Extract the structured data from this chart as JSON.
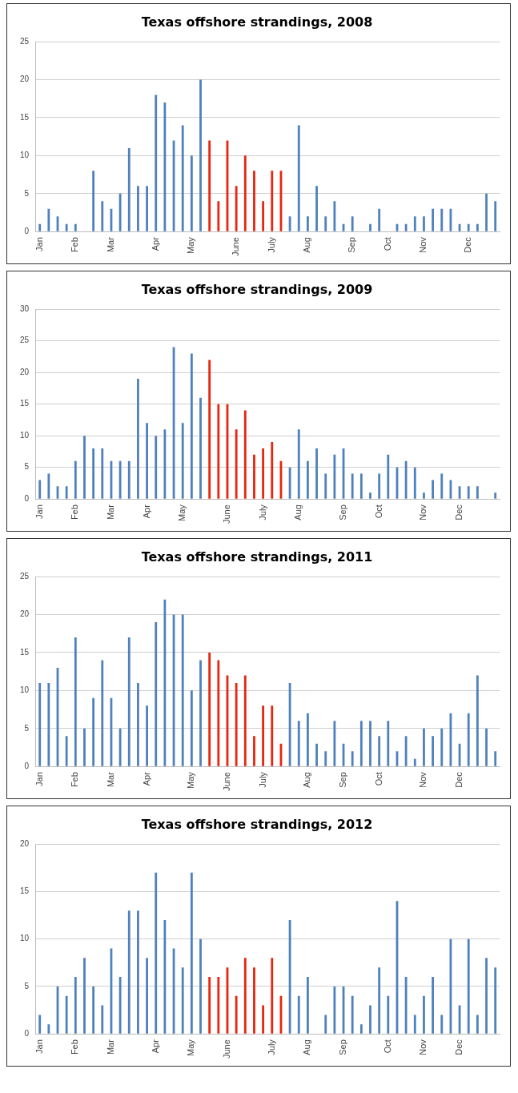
{
  "chart_data": [
    {
      "type": "bar",
      "title": "Texas offshore strandings, 2008",
      "categories": [
        "Jan",
        null,
        null,
        null,
        "Feb",
        null,
        null,
        null,
        "Mar",
        null,
        null,
        null,
        null,
        "Apr",
        null,
        null,
        null,
        "May",
        null,
        null,
        null,
        null,
        "June",
        null,
        null,
        null,
        "July",
        null,
        null,
        null,
        "Aug",
        null,
        null,
        null,
        null,
        "Sep",
        null,
        null,
        null,
        "Oct",
        null,
        null,
        null,
        "Nov",
        null,
        null,
        null,
        null,
        "Dec",
        null,
        null,
        null
      ],
      "values": [
        1,
        3,
        2,
        1,
        1,
        0,
        8,
        4,
        3,
        5,
        11,
        6,
        6,
        18,
        17,
        12,
        14,
        10,
        20,
        12,
        4,
        12,
        6,
        10,
        8,
        4,
        8,
        8,
        2,
        14,
        2,
        6,
        2,
        4,
        1,
        2,
        0,
        1,
        3,
        0,
        1,
        1,
        2,
        2,
        3,
        3,
        3,
        1,
        1,
        1,
        5,
        4
      ],
      "colors": [
        "#4f81bd",
        "#4f81bd",
        "#4f81bd",
        "#4f81bd",
        "#4f81bd",
        "#4f81bd",
        "#4f81bd",
        "#4f81bd",
        "#4f81bd",
        "#4f81bd",
        "#4f81bd",
        "#4f81bd",
        "#4f81bd",
        "#4f81bd",
        "#4f81bd",
        "#4f81bd",
        "#4f81bd",
        "#4f81bd",
        "#4f81bd",
        "#e8250f",
        "#e8250f",
        "#e8250f",
        "#e8250f",
        "#e8250f",
        "#e8250f",
        "#e8250f",
        "#e8250f",
        "#e8250f",
        "#4f81bd",
        "#4f81bd",
        "#4f81bd",
        "#4f81bd",
        "#4f81bd",
        "#4f81bd",
        "#4f81bd",
        "#4f81bd",
        "#4f81bd",
        "#4f81bd",
        "#4f81bd",
        "#4f81bd",
        "#4f81bd",
        "#4f81bd",
        "#4f81bd",
        "#4f81bd",
        "#4f81bd",
        "#4f81bd",
        "#4f81bd",
        "#4f81bd",
        "#4f81bd",
        "#4f81bd",
        "#4f81bd",
        "#4f81bd"
      ],
      "ylim": [
        0,
        25
      ],
      "yticks": [
        0,
        5,
        10,
        15,
        20,
        25
      ],
      "grid": "y"
    },
    {
      "type": "bar",
      "title": "Texas offshore strandings, 2009",
      "categories": [
        "Jan",
        null,
        null,
        null,
        "Feb",
        null,
        null,
        null,
        "Mar",
        null,
        null,
        null,
        "Apr",
        null,
        null,
        null,
        "May",
        null,
        null,
        null,
        null,
        "June",
        null,
        null,
        null,
        "July",
        null,
        null,
        null,
        "Aug",
        null,
        null,
        null,
        null,
        "Sep",
        null,
        null,
        null,
        "Oct",
        null,
        null,
        null,
        null,
        "Nov",
        null,
        null,
        null,
        "Dec",
        null,
        null,
        null,
        null
      ],
      "values": [
        3,
        4,
        2,
        2,
        6,
        10,
        8,
        8,
        6,
        6,
        6,
        19,
        12,
        10,
        11,
        24,
        12,
        23,
        16,
        22,
        15,
        15,
        11,
        14,
        7,
        8,
        9,
        6,
        5,
        11,
        6,
        8,
        4,
        7,
        8,
        4,
        4,
        1,
        4,
        7,
        5,
        6,
        5,
        1,
        3,
        4,
        3,
        2,
        2,
        2,
        0,
        1
      ],
      "colors": [
        "#4f81bd",
        "#4f81bd",
        "#4f81bd",
        "#4f81bd",
        "#4f81bd",
        "#4f81bd",
        "#4f81bd",
        "#4f81bd",
        "#4f81bd",
        "#4f81bd",
        "#4f81bd",
        "#4f81bd",
        "#4f81bd",
        "#4f81bd",
        "#4f81bd",
        "#4f81bd",
        "#4f81bd",
        "#4f81bd",
        "#4f81bd",
        "#e8250f",
        "#e8250f",
        "#e8250f",
        "#e8250f",
        "#e8250f",
        "#e8250f",
        "#e8250f",
        "#e8250f",
        "#e8250f",
        "#4f81bd",
        "#4f81bd",
        "#4f81bd",
        "#4f81bd",
        "#4f81bd",
        "#4f81bd",
        "#4f81bd",
        "#4f81bd",
        "#4f81bd",
        "#4f81bd",
        "#4f81bd",
        "#4f81bd",
        "#4f81bd",
        "#4f81bd",
        "#4f81bd",
        "#4f81bd",
        "#4f81bd",
        "#4f81bd",
        "#4f81bd",
        "#4f81bd",
        "#4f81bd",
        "#4f81bd",
        "#4f81bd",
        "#4f81bd"
      ],
      "ylim": [
        0,
        30
      ],
      "yticks": [
        0,
        5,
        10,
        15,
        20,
        25,
        30
      ],
      "grid": "y"
    },
    {
      "type": "bar",
      "title": "Texas offshore strandings, 2011",
      "categories": [
        "Jan",
        null,
        null,
        null,
        "Feb",
        null,
        null,
        null,
        "Mar",
        null,
        null,
        null,
        "Apr",
        null,
        null,
        null,
        null,
        "May",
        null,
        null,
        null,
        "June",
        null,
        null,
        null,
        "July",
        null,
        null,
        null,
        null,
        "Aug",
        null,
        null,
        null,
        "Sep",
        null,
        null,
        null,
        "Oct",
        null,
        null,
        null,
        null,
        "Nov",
        null,
        null,
        null,
        "Dec",
        null,
        null,
        null,
        null
      ],
      "values": [
        11,
        11,
        13,
        4,
        17,
        5,
        9,
        14,
        9,
        5,
        17,
        11,
        8,
        19,
        22,
        20,
        20,
        10,
        14,
        15,
        14,
        12,
        11,
        12,
        4,
        8,
        8,
        3,
        11,
        6,
        7,
        3,
        2,
        6,
        3,
        2,
        6,
        6,
        4,
        6,
        2,
        4,
        1,
        5,
        4,
        5,
        7,
        3,
        7,
        12,
        5,
        2
      ],
      "colors": [
        "#4f81bd",
        "#4f81bd",
        "#4f81bd",
        "#4f81bd",
        "#4f81bd",
        "#4f81bd",
        "#4f81bd",
        "#4f81bd",
        "#4f81bd",
        "#4f81bd",
        "#4f81bd",
        "#4f81bd",
        "#4f81bd",
        "#4f81bd",
        "#4f81bd",
        "#4f81bd",
        "#4f81bd",
        "#4f81bd",
        "#4f81bd",
        "#e8250f",
        "#e8250f",
        "#e8250f",
        "#e8250f",
        "#e8250f",
        "#e8250f",
        "#e8250f",
        "#e8250f",
        "#e8250f",
        "#4f81bd",
        "#4f81bd",
        "#4f81bd",
        "#4f81bd",
        "#4f81bd",
        "#4f81bd",
        "#4f81bd",
        "#4f81bd",
        "#4f81bd",
        "#4f81bd",
        "#4f81bd",
        "#4f81bd",
        "#4f81bd",
        "#4f81bd",
        "#4f81bd",
        "#4f81bd",
        "#4f81bd",
        "#4f81bd",
        "#4f81bd",
        "#4f81bd",
        "#4f81bd",
        "#4f81bd",
        "#4f81bd",
        "#4f81bd"
      ],
      "ylim": [
        0,
        25
      ],
      "yticks": [
        0,
        5,
        10,
        15,
        20,
        25
      ],
      "grid": "y"
    },
    {
      "type": "bar",
      "title": "Texas offshore strandings, 2012",
      "categories": [
        "Jan",
        null,
        null,
        null,
        "Feb",
        null,
        null,
        null,
        "Mar",
        null,
        null,
        null,
        null,
        "Apr",
        null,
        null,
        null,
        "May",
        null,
        null,
        null,
        "June",
        null,
        null,
        null,
        null,
        "July",
        null,
        null,
        null,
        "Aug",
        null,
        null,
        null,
        "Sep",
        null,
        null,
        null,
        null,
        "Oct",
        null,
        null,
        null,
        "Nov",
        null,
        null,
        null,
        "Dec",
        null,
        null,
        null,
        null
      ],
      "values": [
        2,
        1,
        5,
        4,
        6,
        8,
        5,
        3,
        9,
        6,
        13,
        13,
        8,
        17,
        12,
        9,
        7,
        17,
        10,
        6,
        6,
        7,
        4,
        8,
        7,
        3,
        8,
        4,
        12,
        4,
        6,
        0,
        2,
        5,
        5,
        4,
        1,
        3,
        7,
        4,
        14,
        6,
        2,
        4,
        6,
        2,
        10,
        3,
        10,
        2,
        8,
        7
      ],
      "colors": [
        "#4f81bd",
        "#4f81bd",
        "#4f81bd",
        "#4f81bd",
        "#4f81bd",
        "#4f81bd",
        "#4f81bd",
        "#4f81bd",
        "#4f81bd",
        "#4f81bd",
        "#4f81bd",
        "#4f81bd",
        "#4f81bd",
        "#4f81bd",
        "#4f81bd",
        "#4f81bd",
        "#4f81bd",
        "#4f81bd",
        "#4f81bd",
        "#e8250f",
        "#e8250f",
        "#e8250f",
        "#e8250f",
        "#e8250f",
        "#e8250f",
        "#e8250f",
        "#e8250f",
        "#e8250f",
        "#4f81bd",
        "#4f81bd",
        "#4f81bd",
        "#4f81bd",
        "#4f81bd",
        "#4f81bd",
        "#4f81bd",
        "#4f81bd",
        "#4f81bd",
        "#4f81bd",
        "#4f81bd",
        "#4f81bd",
        "#4f81bd",
        "#4f81bd",
        "#4f81bd",
        "#4f81bd",
        "#4f81bd",
        "#4f81bd",
        "#4f81bd",
        "#4f81bd",
        "#4f81bd",
        "#4f81bd",
        "#4f81bd",
        "#4f81bd"
      ],
      "ylim": [
        0,
        20
      ],
      "yticks": [
        0,
        5,
        10,
        15,
        20
      ],
      "grid": "y"
    }
  ]
}
